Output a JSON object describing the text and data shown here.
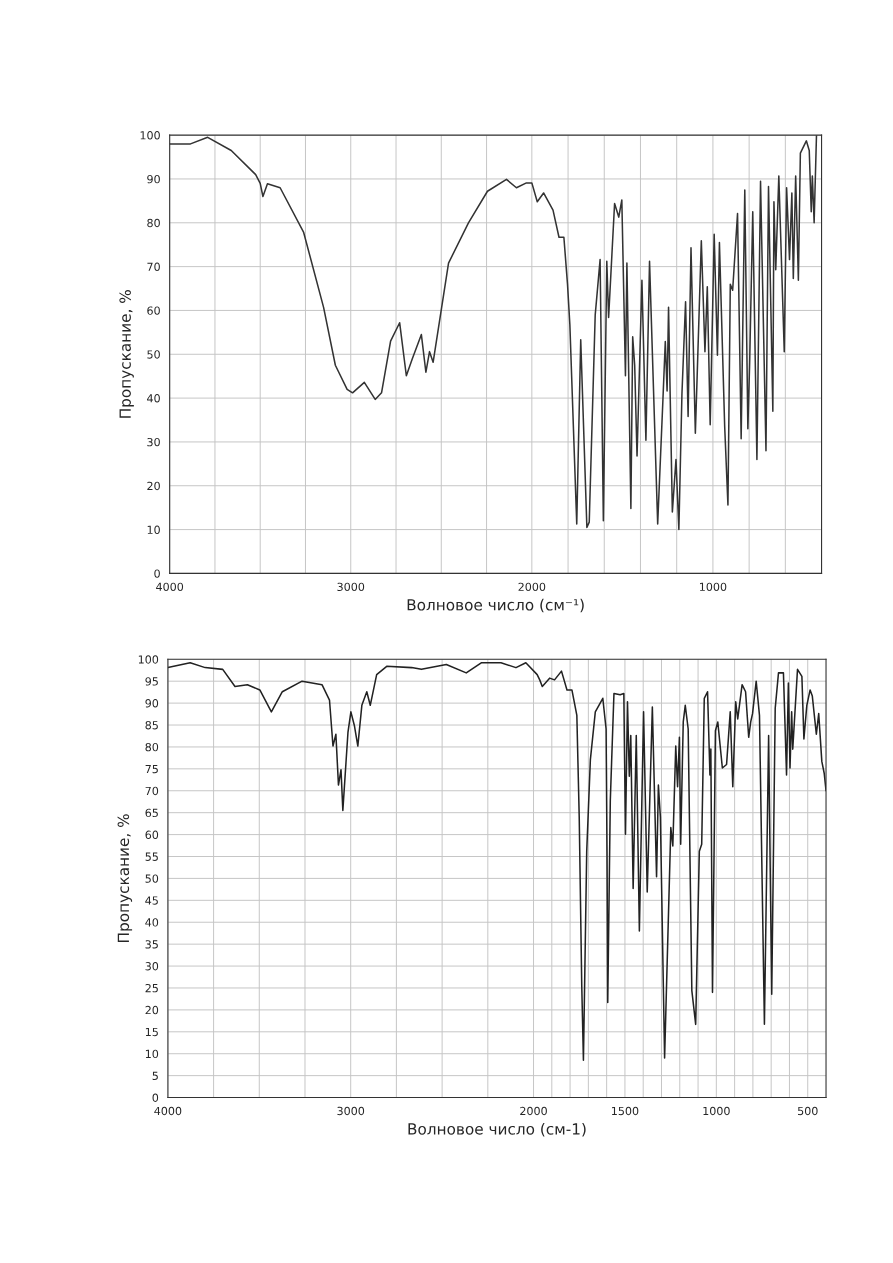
{
  "chart_data": [
    {
      "type": "line",
      "xlabel": "Волновое число (см⁻¹)",
      "ylabel": "Пропускание, %",
      "xlim": [
        4000,
        400
      ],
      "ylim": [
        0,
        100
      ],
      "xticks": [
        4000,
        {
          "value": 3750,
          "label": null
        },
        {
          "value": 3500,
          "label": null
        },
        {
          "value": 3250,
          "label": null
        },
        3000,
        {
          "value": 2750,
          "label": null
        },
        {
          "value": 2500,
          "label": null
        },
        {
          "value": 2250,
          "label": null
        },
        2000,
        {
          "value": 1800,
          "label": null
        },
        {
          "value": 1600,
          "label": null
        },
        {
          "value": 1400,
          "label": null
        },
        {
          "value": 1200,
          "label": null
        },
        1000,
        {
          "value": 800,
          "label": null
        },
        {
          "value": 600,
          "label": null
        }
      ],
      "yticks": [
        0,
        10,
        20,
        30,
        40,
        50,
        60,
        70,
        80,
        90,
        100
      ],
      "grid": true,
      "marker": "none",
      "line_style": "solid",
      "series": [
        {
          "color": "#333333",
          "x": [
            4000,
            3885,
            3790,
            3660,
            3525,
            3500,
            3485,
            3460,
            3390,
            3260,
            3150,
            3085,
            3020,
            2990,
            2925,
            2865,
            2830,
            2780,
            2730,
            2693,
            2660,
            2610,
            2585,
            2565,
            2545,
            2460,
            2350,
            2245,
            2140,
            2085,
            2030,
            2000,
            1970,
            1935,
            1883,
            1850,
            1823,
            1803,
            1790,
            1752,
            1730,
            1696,
            1683,
            1650,
            1623,
            1605,
            1586,
            1576,
            1543,
            1520,
            1503,
            1483,
            1475,
            1453,
            1443,
            1432,
            1419,
            1392,
            1370,
            1350,
            1305,
            1276,
            1263,
            1253,
            1245,
            1224,
            1204,
            1188,
            1171,
            1151,
            1137,
            1121,
            1097,
            1087,
            1064,
            1044,
            1031,
            1015,
            993,
            975,
            964,
            935,
            917,
            904,
            891,
            864,
            844,
            824,
            807,
            797,
            780,
            757,
            737,
            707,
            693,
            669,
            663,
            653,
            636,
            606,
            593,
            577,
            564,
            556,
            543,
            528,
            517,
            484,
            468,
            457,
            451,
            441,
            428
          ],
          "values": [
            98,
            98,
            99.5,
            96.5,
            91,
            89,
            86,
            88.9,
            88,
            77.8,
            60.7,
            47.5,
            42,
            41.2,
            43.6,
            39.7,
            41.2,
            53,
            57.2,
            45.1,
            49,
            54.5,
            45.9,
            50.6,
            48.2,
            70.8,
            80,
            87.2,
            89.9,
            88,
            89.1,
            89.1,
            84.8,
            86.8,
            82.9,
            76.7,
            76.7,
            66,
            56.8,
            11.3,
            53.3,
            10.5,
            11.7,
            59,
            71.6,
            12,
            71.2,
            58.4,
            84.4,
            81.3,
            85.2,
            45.1,
            70.8,
            14.8,
            54,
            47.5,
            26.8,
            66.9,
            30.4,
            71.2,
            11.3,
            39.7,
            52.9,
            41.6,
            60.7,
            14,
            26,
            10,
            41,
            62,
            35.8,
            74.3,
            32,
            45,
            75.9,
            50.6,
            65.4,
            33.9,
            77.4,
            49.8,
            75.5,
            33.5,
            15.6,
            66,
            64.6,
            82.1,
            30.7,
            87.5,
            33,
            48.2,
            82.5,
            26,
            89.5,
            28,
            88.3,
            37,
            84.8,
            69.3,
            90.7,
            50.6,
            88,
            71.6,
            86.8,
            67.3,
            90.7,
            66.9,
            95.9,
            98.7,
            96.5,
            82.5,
            90.7,
            80,
            100
          ]
        }
      ]
    },
    {
      "type": "line",
      "xlabel": "Волновое число (см-1)",
      "ylabel": "Пропускание, %",
      "xlim": [
        4000,
        400
      ],
      "ylim": [
        0,
        100
      ],
      "xticks": [
        4000,
        {
          "value": 3750,
          "label": null
        },
        {
          "value": 3500,
          "label": null
        },
        {
          "value": 3250,
          "label": null
        },
        3000,
        {
          "value": 2750,
          "label": null
        },
        {
          "value": 2500,
          "label": null
        },
        {
          "value": 2250,
          "label": null
        },
        2000,
        {
          "value": 1900,
          "label": null
        },
        {
          "value": 1800,
          "label": null
        },
        {
          "value": 1700,
          "label": null
        },
        {
          "value": 1600,
          "label": null
        },
        1500,
        {
          "value": 1400,
          "label": null
        },
        {
          "value": 1300,
          "label": null
        },
        {
          "value": 1200,
          "label": null
        },
        {
          "value": 1100,
          "label": null
        },
        1000,
        {
          "value": 900,
          "label": null
        },
        {
          "value": 800,
          "label": null
        },
        {
          "value": 700,
          "label": null
        },
        {
          "value": 600,
          "label": null
        },
        500
      ],
      "yticks": [
        0,
        5,
        10,
        15,
        20,
        25,
        30,
        35,
        40,
        45,
        50,
        55,
        60,
        65,
        70,
        75,
        80,
        85,
        90,
        95,
        100
      ],
      "grid": true,
      "marker": "none",
      "line_style": "solid",
      "series": [
        {
          "color": "#222222",
          "x": [
            4000,
            3878,
            3796,
            3700,
            3633,
            3565,
            3497,
            3434,
            3374,
            3266,
            3157,
            3116,
            3097,
            3081,
            3067,
            3053,
            3043,
            3015,
            2999,
            2980,
            2961,
            2939,
            2912,
            2893,
            2858,
            2803,
            2667,
            2613,
            2477,
            2368,
            2286,
            2178,
            2096,
            2042,
            1980,
            1966,
            1952,
            1912,
            1885,
            1847,
            1817,
            1790,
            1763,
            1750,
            1736,
            1727,
            1709,
            1689,
            1662,
            1621,
            1603,
            1598,
            1594,
            1580,
            1560,
            1526,
            1506,
            1497,
            1486,
            1476,
            1468,
            1455,
            1438,
            1421,
            1398,
            1378,
            1350,
            1327,
            1317,
            1306,
            1283,
            1249,
            1238,
            1222,
            1212,
            1202,
            1195,
            1181,
            1170,
            1154,
            1134,
            1113,
            1093,
            1080,
            1066,
            1048,
            1035,
            1030,
            1021,
            1005,
            992,
            967,
            944,
            924,
            910,
            894,
            883,
            859,
            840,
            823,
            812,
            802,
            782,
            764,
            737,
            714,
            697,
            678,
            660,
            633,
            616,
            606,
            597,
            588,
            582,
            556,
            532,
            521,
            505,
            487,
            475,
            453,
            440,
            423,
            410,
            400
          ],
          "values": [
            98.1,
            99.2,
            98.1,
            97.7,
            93.8,
            94.2,
            93,
            88,
            92.6,
            95,
            94.2,
            90.7,
            80.2,
            82.9,
            71.3,
            74.8,
            65.5,
            83.3,
            88,
            84.9,
            80.2,
            89.5,
            92.6,
            89.5,
            96.5,
            98.4,
            98.1,
            97.7,
            98.8,
            96.9,
            99.2,
            99.2,
            98.1,
            99.2,
            96.5,
            95.3,
            93.8,
            95.7,
            95.3,
            97.3,
            93,
            93,
            87.2,
            64,
            25.2,
            8.5,
            56.2,
            77.1,
            88,
            91.1,
            84.1,
            56.2,
            21.7,
            67.8,
            92.2,
            91.9,
            92.2,
            60.1,
            90.3,
            73.3,
            82.6,
            47.7,
            82.6,
            38,
            88,
            46.9,
            89.1,
            50.4,
            71.3,
            64,
            9,
            61.6,
            57.4,
            80.2,
            70.9,
            82.2,
            57.8,
            85.7,
            89.5,
            84.1,
            24.4,
            16.7,
            56.2,
            57.8,
            91.1,
            92.6,
            73.6,
            79.5,
            24,
            83.7,
            85.7,
            75.2,
            76,
            88,
            70.9,
            90.3,
            86.4,
            94.2,
            92.6,
            82.2,
            85.7,
            87.6,
            95,
            87.2,
            16.7,
            82.6,
            23.6,
            88.8,
            96.9,
            96.9,
            73.6,
            94.6,
            75.2,
            88,
            79.5,
            97.7,
            96.1,
            81.8,
            89.5,
            93,
            91.6,
            82.9,
            87.6,
            76.7,
            74,
            70
          ]
        }
      ]
    }
  ]
}
